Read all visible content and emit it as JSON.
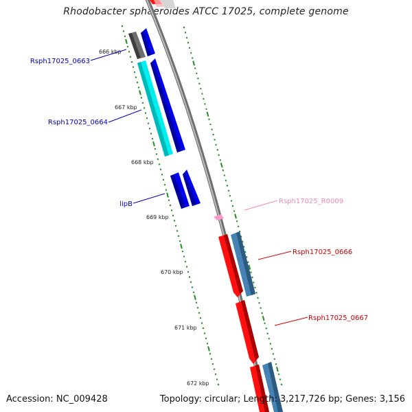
{
  "title": "Rhodobacter sphaeroides ATCC 17025, complete genome",
  "footer": {
    "accession": "Accession: NC_009428",
    "summary": "Topology: circular; Length: 3,217,726 bp; Genes: 3,156"
  },
  "ticks": [
    {
      "label": "666 kbp"
    },
    {
      "label": "667 kbp"
    },
    {
      "label": "668 kbp"
    },
    {
      "label": "669 kbp"
    },
    {
      "label": "670 kbp"
    },
    {
      "label": "671 kbp"
    },
    {
      "label": "672 kbp"
    }
  ],
  "genes": [
    {
      "label": "Rsph17025_0663",
      "color": "#0000bb"
    },
    {
      "label": "Rsph17025_0664",
      "color": "#0000bb"
    },
    {
      "label": "lipB",
      "color": "#0000bb"
    },
    {
      "label": "Rsph17025_R0009",
      "color": "#ee88bb"
    },
    {
      "label": "Rsph17025_0666",
      "color": "#cc0000"
    },
    {
      "label": "Rsph17025_0667",
      "color": "#cc0000"
    }
  ],
  "colors": {
    "backbone": "#888888",
    "tick": "#228b22",
    "forward_cds": "#0000ee",
    "cyan_cds": "#00eeee",
    "grey_cds": "#6e6e6e",
    "reverse_cds": "#ff1111",
    "steelblue_cds": "#4682b4",
    "rna": "#ff99cc"
  }
}
